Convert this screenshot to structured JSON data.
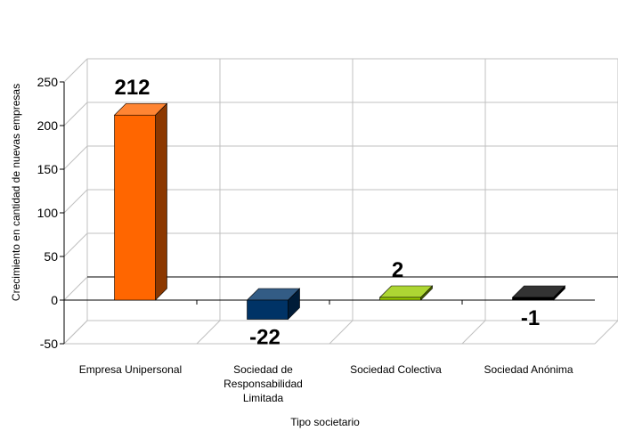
{
  "chart_data": {
    "type": "bar",
    "title": "",
    "xlabel": "Tipo societario",
    "ylabel": "Crecimiento en cantidad de nuevas empresas",
    "ylim": [
      -50,
      250
    ],
    "yticks": [
      -50,
      0,
      50,
      100,
      150,
      200,
      250
    ],
    "ytick_labels": [
      "-50",
      "0",
      "50",
      "100",
      "150",
      "200",
      "250"
    ],
    "grid": true,
    "categories": [
      "Empresa Unipersonal",
      "Sociedad de Responsabilidad Limitada",
      "Sociedad Colectiva",
      "Sociedad Anónima"
    ],
    "category_lines": [
      [
        "Empresa Unipersonal"
      ],
      [
        "Sociedad de",
        "Responsabilidad",
        "Limitada"
      ],
      [
        "Sociedad Colectiva"
      ],
      [
        "Sociedad Anónima"
      ]
    ],
    "values": [
      212,
      -22,
      2,
      -1
    ],
    "data_labels": [
      "212",
      "-22",
      "2",
      "-1"
    ],
    "colors": [
      "#ff6600",
      "#003366",
      "#99cc00",
      "#000000"
    ]
  }
}
